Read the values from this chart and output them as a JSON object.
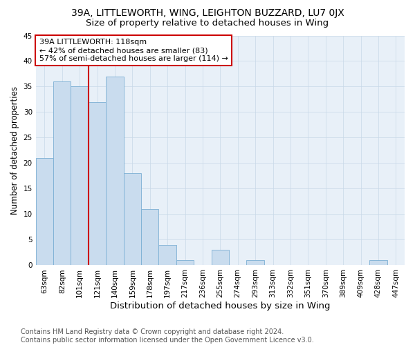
{
  "title1": "39A, LITTLEWORTH, WING, LEIGHTON BUZZARD, LU7 0JX",
  "title2": "Size of property relative to detached houses in Wing",
  "xlabel": "Distribution of detached houses by size in Wing",
  "ylabel": "Number of detached properties",
  "categories": [
    "63sqm",
    "82sqm",
    "101sqm",
    "121sqm",
    "140sqm",
    "159sqm",
    "178sqm",
    "197sqm",
    "217sqm",
    "236sqm",
    "255sqm",
    "274sqm",
    "293sqm",
    "313sqm",
    "332sqm",
    "351sqm",
    "370sqm",
    "389sqm",
    "409sqm",
    "428sqm",
    "447sqm"
  ],
  "values": [
    21,
    36,
    35,
    32,
    37,
    18,
    11,
    4,
    1,
    0,
    3,
    0,
    1,
    0,
    0,
    0,
    0,
    0,
    0,
    1,
    0
  ],
  "bar_color": "#c9dcee",
  "bar_edge_color": "#7bafd4",
  "grid_color": "#c8d8e8",
  "bg_color": "#e8f0f8",
  "vline_color": "#cc0000",
  "vline_x_idx": 2.5,
  "annotation_text": "39A LITTLEWORTH: 118sqm\n← 42% of detached houses are smaller (83)\n57% of semi-detached houses are larger (114) →",
  "annotation_box_color": "#cc0000",
  "ylim": [
    0,
    45
  ],
  "yticks": [
    0,
    5,
    10,
    15,
    20,
    25,
    30,
    35,
    40,
    45
  ],
  "footnote": "Contains HM Land Registry data © Crown copyright and database right 2024.\nContains public sector information licensed under the Open Government Licence v3.0.",
  "title1_fontsize": 10,
  "title2_fontsize": 9.5,
  "xlabel_fontsize": 9.5,
  "ylabel_fontsize": 8.5,
  "tick_fontsize": 7.5,
  "annotation_fontsize": 8,
  "footnote_fontsize": 7
}
